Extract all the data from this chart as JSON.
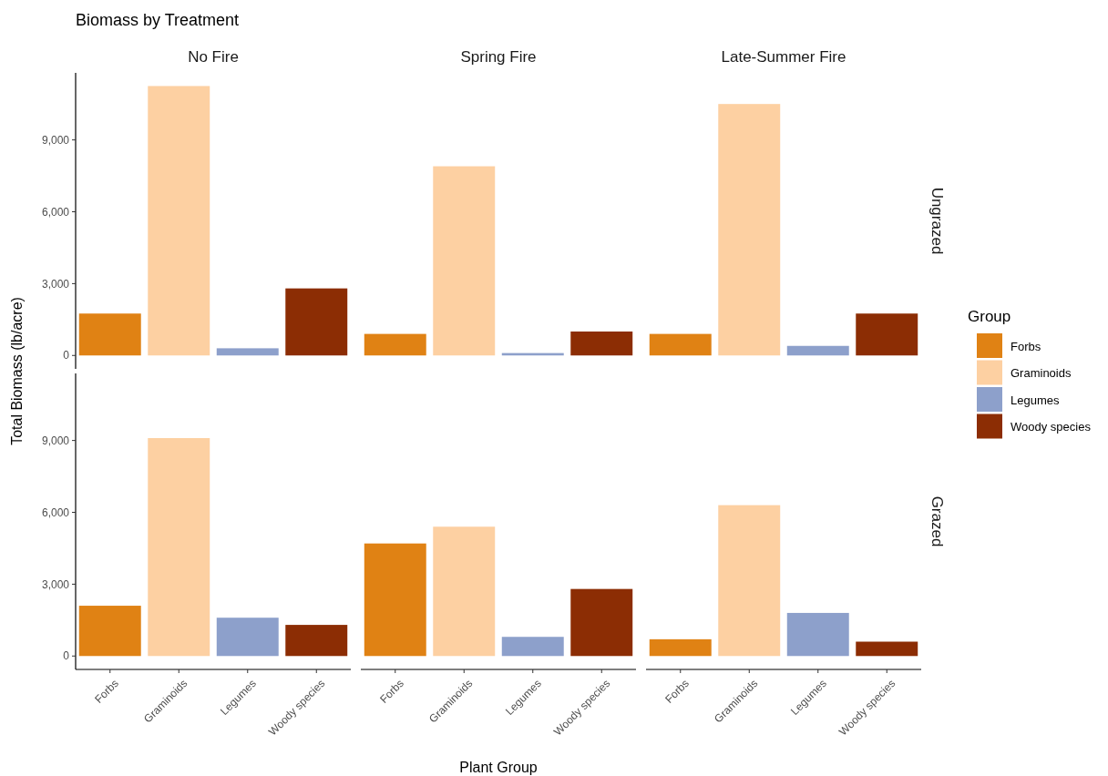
{
  "chart_data": [
    {
      "type": "bar",
      "title": "Biomass by Treatment",
      "annotations": [
        "No Fire",
        "Spring Fire",
        "Late-Summer Fire"
      ],
      "y2label": "Ungrazed",
      "ylabel": "Total Biomass (lb/acre)",
      "stacked": true,
      "categories": [
        null,
        null,
        null,
        null,
        null,
        null,
        null,
        null,
        null,
        null,
        null,
        null
      ],
      "series": [
        {
          "color": "#e08214",
          "values": [
            1750,
            null,
            null,
            null,
            900,
            null,
            null,
            null,
            900,
            null,
            null,
            null
          ]
        },
        {
          "color": "#fdd0a2",
          "values": [
            null,
            11250,
            null,
            null,
            null,
            7900,
            null,
            null,
            null,
            10500,
            null,
            null
          ]
        },
        {
          "color": "#8da0cb",
          "values": [
            null,
            null,
            300,
            null,
            null,
            null,
            100,
            null,
            null,
            null,
            400,
            null
          ]
        },
        {
          "color": "#8c2d04",
          "values": [
            null,
            null,
            null,
            2800,
            null,
            null,
            null,
            1000,
            null,
            null,
            null,
            1750
          ]
        }
      ],
      "ylim": [
        -560,
        11800
      ],
      "yticks": [
        {
          "value": 0,
          "label": "0"
        },
        {
          "value": 3000,
          "label": "3,000"
        },
        {
          "value": 6000,
          "label": "6,000"
        },
        {
          "value": 9000,
          "label": "9,000"
        }
      ]
    },
    {
      "type": "bar",
      "y2label": "Grazed",
      "xlabel": "Plant Group",
      "legend_title": "Group",
      "legend": "right",
      "stacked": true,
      "categories": [
        "Forbs",
        "Graminoids",
        "Legumes",
        "Woody species",
        "Forbs",
        "Graminoids",
        "Legumes",
        "Woody species",
        "Forbs",
        "Graminoids",
        "Legumes",
        "Woody species"
      ],
      "series": [
        {
          "name": "Forbs",
          "color": "#e08214",
          "values": [
            2100,
            null,
            null,
            null,
            4700,
            null,
            null,
            null,
            700,
            null,
            null,
            null
          ]
        },
        {
          "name": "Graminoids",
          "color": "#fdd0a2",
          "values": [
            null,
            9100,
            null,
            null,
            null,
            5400,
            null,
            null,
            null,
            6300,
            null,
            null
          ]
        },
        {
          "name": "Legumes",
          "color": "#8da0cb",
          "values": [
            null,
            null,
            1600,
            null,
            null,
            null,
            800,
            null,
            null,
            null,
            1800,
            null
          ]
        },
        {
          "name": "Woody species",
          "color": "#8c2d04",
          "values": [
            null,
            null,
            null,
            1300,
            null,
            null,
            null,
            2800,
            null,
            null,
            null,
            600
          ]
        }
      ],
      "ylim": [
        -560,
        11800
      ],
      "yticks": [
        {
          "value": 0,
          "label": "0"
        },
        {
          "value": 3000,
          "label": "3,000"
        },
        {
          "value": 6000,
          "label": "6,000"
        },
        {
          "value": 9000,
          "label": "9,000"
        }
      ]
    }
  ]
}
